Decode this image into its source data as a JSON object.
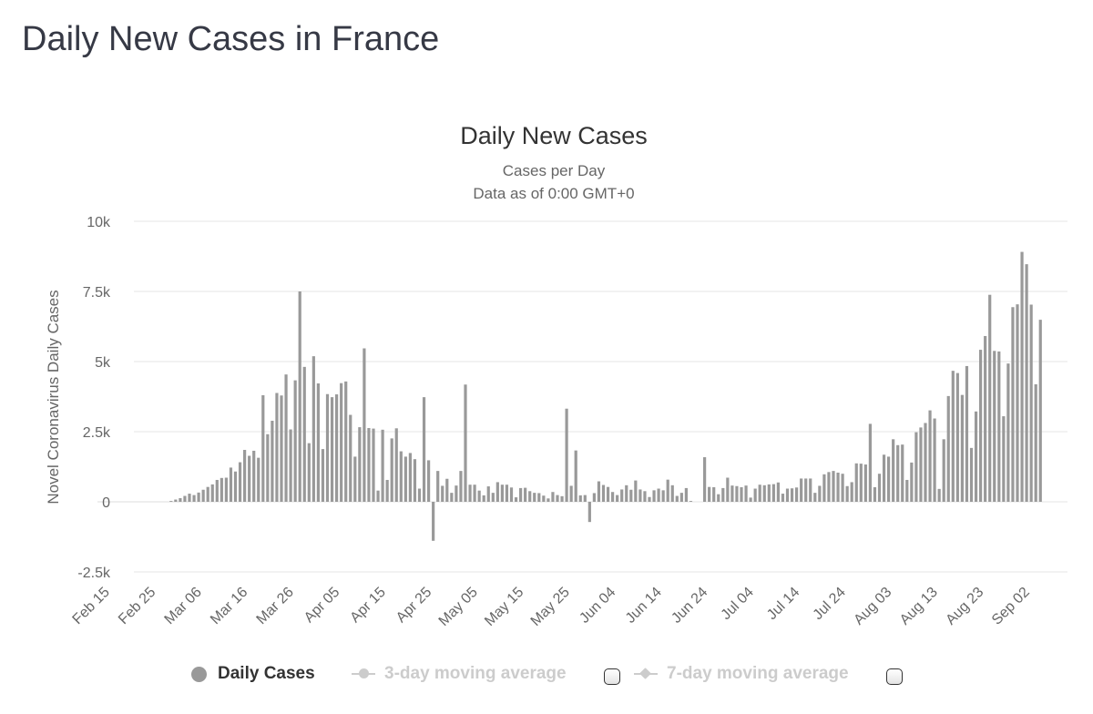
{
  "page": {
    "title": "Daily New Cases in France"
  },
  "colors": {
    "bar": "#999999",
    "grid": "#e6e6e6",
    "text": "#666666",
    "title": "#333333",
    "legend_inactive": "#cccccc"
  },
  "chart_data": {
    "type": "bar",
    "title": "Daily New Cases",
    "subtitle": [
      "Cases per Day",
      "Data as of 0:00 GMT+0"
    ],
    "ylabel": "Novel Coronavirus Daily Cases",
    "ylim": [
      -2500,
      10000
    ],
    "yticks": [
      -2500,
      0,
      2500,
      5000,
      7500,
      10000
    ],
    "ytick_labels": [
      "-2.5k",
      "0",
      "2.5k",
      "5k",
      "7.5k",
      "10k"
    ],
    "xtick_labels": [
      "Feb 15",
      "Feb 25",
      "Mar 06",
      "Mar 16",
      "Mar 26",
      "Apr 05",
      "Apr 15",
      "Apr 25",
      "May 05",
      "May 15",
      "May 25",
      "Jun 04",
      "Jun 14",
      "Jun 24",
      "Jul 04",
      "Jul 14",
      "Jul 24",
      "Aug 03",
      "Aug 13",
      "Aug 23",
      "Sep 02"
    ],
    "start_date": "Feb 15",
    "series": [
      {
        "name": "Daily Cases",
        "values": [
          0,
          0,
          0,
          0,
          0,
          0,
          0,
          0,
          0,
          0,
          0,
          0,
          0,
          0,
          0,
          0,
          30,
          80,
          130,
          210,
          290,
          240,
          330,
          430,
          530,
          620,
          780,
          850,
          860,
          1220,
          1080,
          1410,
          1850,
          1640,
          1820,
          1570,
          3800,
          2410,
          2890,
          3880,
          3790,
          4540,
          2580,
          4330,
          7500,
          4810,
          2090,
          5190,
          4220,
          1880,
          3840,
          3730,
          3830,
          4230,
          4290,
          3100,
          1610,
          2660,
          5470,
          2630,
          2610,
          400,
          2570,
          780,
          2260,
          2620,
          1800,
          1610,
          1740,
          1520,
          470,
          3730,
          1480,
          -1390,
          1100,
          570,
          820,
          320,
          580,
          1100,
          4180,
          610,
          610,
          400,
          230,
          550,
          320,
          700,
          610,
          610,
          510,
          160,
          490,
          500,
          380,
          320,
          310,
          220,
          120,
          350,
          240,
          200,
          3320,
          570,
          1830,
          230,
          240,
          -720,
          310,
          730,
          600,
          530,
          350,
          240,
          440,
          590,
          430,
          760,
          440,
          380,
          170,
          410,
          470,
          410,
          790,
          590,
          210,
          320,
          490,
          30,
          0,
          0,
          1590,
          530,
          520,
          270,
          490,
          860,
          580,
          560,
          520,
          580,
          150,
          470,
          610,
          590,
          620,
          630,
          690,
          290,
          470,
          480,
          510,
          830,
          830,
          830,
          320,
          570,
          980,
          1060,
          1100,
          1040,
          1000,
          560,
          700,
          1370,
          1360,
          1330,
          2780,
          520,
          1000,
          1680,
          1610,
          2230,
          2020,
          2040,
          780,
          1400,
          2480,
          2650,
          2810,
          3260,
          2970,
          460,
          2230,
          3770,
          4670,
          4590,
          3810,
          4840,
          1920,
          3220,
          5420,
          5910,
          7380,
          5380,
          5360,
          3050,
          4930,
          6940,
          7040,
          8910,
          8470,
          7030,
          4190,
          6490
        ]
      }
    ],
    "legend": [
      {
        "label": "Daily Cases",
        "active": true
      },
      {
        "label": "3-day moving average",
        "active": false
      },
      {
        "label": "7-day moving average",
        "active": false
      }
    ]
  }
}
